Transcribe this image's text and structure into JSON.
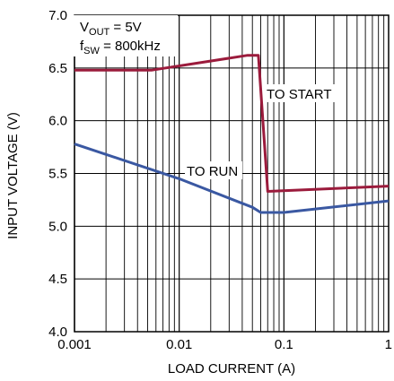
{
  "chart_data": {
    "type": "line",
    "xlabel": "LOAD CURRENT (A)",
    "ylabel": "INPUT VOLTAGE (V)",
    "x_scale": "log",
    "xlim": [
      0.001,
      1
    ],
    "ylim": [
      4.0,
      7.0
    ],
    "x_ticks": [
      0.001,
      0.01,
      0.1,
      1
    ],
    "x_tick_labels": [
      "0.001",
      "0.01",
      "0.1",
      "1"
    ],
    "y_ticks": [
      4.0,
      4.5,
      5.0,
      5.5,
      6.0,
      6.5,
      7.0
    ],
    "y_tick_labels": [
      "4.0",
      "4.5",
      "5.0",
      "5.5",
      "6.0",
      "6.5",
      "7.0"
    ],
    "grid": true,
    "conditions": {
      "vout_main": "V",
      "vout_sub": "OUT",
      "vout_value": " = 5V",
      "fsw_main": "f",
      "fsw_sub": "SW",
      "fsw_value": " = 800kHz"
    },
    "series": [
      {
        "label": "TO START",
        "color": "#9b1b3c",
        "points": [
          [
            0.001,
            6.48
          ],
          [
            0.0055,
            6.48
          ],
          [
            0.045,
            6.62
          ],
          [
            0.057,
            6.62
          ],
          [
            0.07,
            5.33
          ],
          [
            1,
            5.38
          ]
        ]
      },
      {
        "label": "TO RUN",
        "color": "#3a58a2",
        "points": [
          [
            0.001,
            5.78
          ],
          [
            0.01,
            5.45
          ],
          [
            0.05,
            5.18
          ],
          [
            0.06,
            5.13
          ],
          [
            0.1,
            5.13
          ],
          [
            1,
            5.24
          ]
        ]
      }
    ]
  }
}
